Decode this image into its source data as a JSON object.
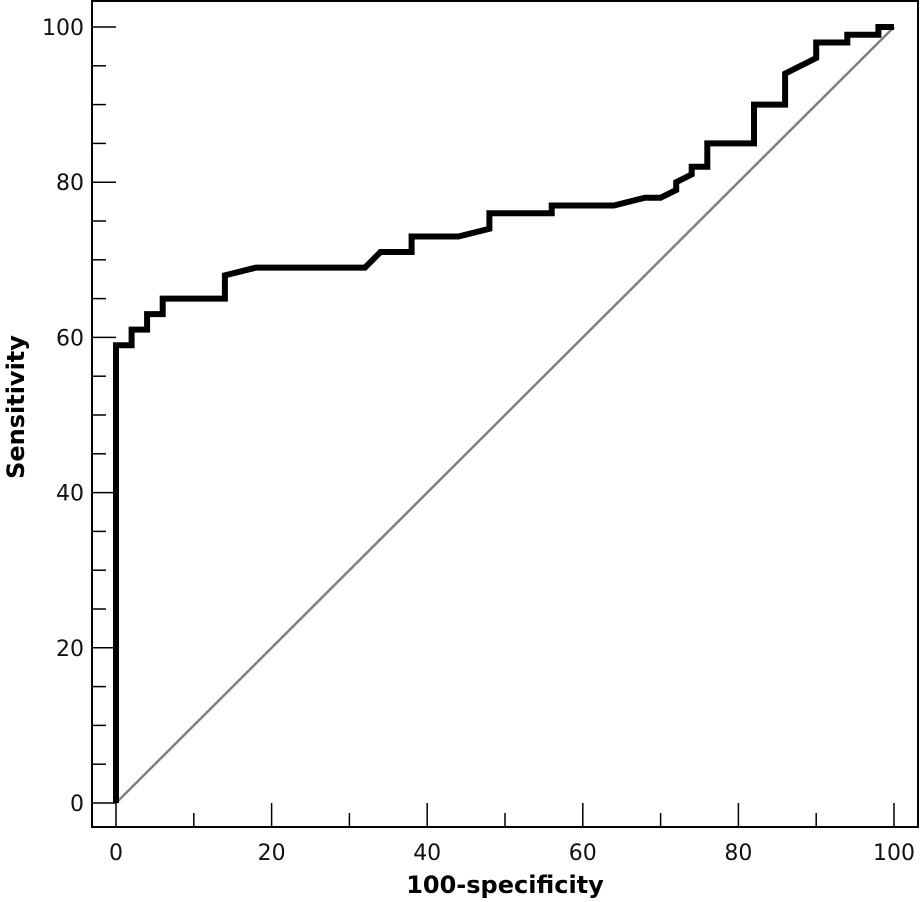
{
  "chart_data": {
    "type": "line",
    "title": "",
    "xlabel": "100-specificity",
    "ylabel": "Sensitivity",
    "xlim": [
      0,
      100
    ],
    "ylim": [
      0,
      100
    ],
    "x_ticks": [
      0,
      20,
      40,
      60,
      80,
      100
    ],
    "y_ticks": [
      0,
      20,
      40,
      60,
      80,
      100
    ],
    "grid": false,
    "legend": "none",
    "series": [
      {
        "style": "step",
        "color": "#000000",
        "x": [
          0,
          0,
          2,
          2,
          4,
          4,
          6,
          6,
          14,
          14,
          18,
          32,
          34,
          38,
          38,
          44,
          48,
          48,
          56,
          56,
          64,
          68,
          70,
          72,
          72,
          74,
          74,
          76,
          76,
          82,
          82,
          86,
          86,
          90,
          90,
          94,
          94,
          98,
          98,
          100
        ],
        "values": [
          0,
          59,
          59,
          61,
          61,
          63,
          63,
          65,
          65,
          68,
          69,
          69,
          71,
          71,
          73,
          73,
          74,
          76,
          76,
          77,
          77,
          78,
          78,
          79,
          80,
          81,
          82,
          82,
          85,
          85,
          90,
          90,
          94,
          96,
          98,
          98,
          99,
          99,
          100,
          100
        ]
      },
      {
        "style": "reference",
        "color": "#808080",
        "x": [
          0,
          100
        ],
        "values": [
          0,
          100
        ]
      }
    ]
  }
}
